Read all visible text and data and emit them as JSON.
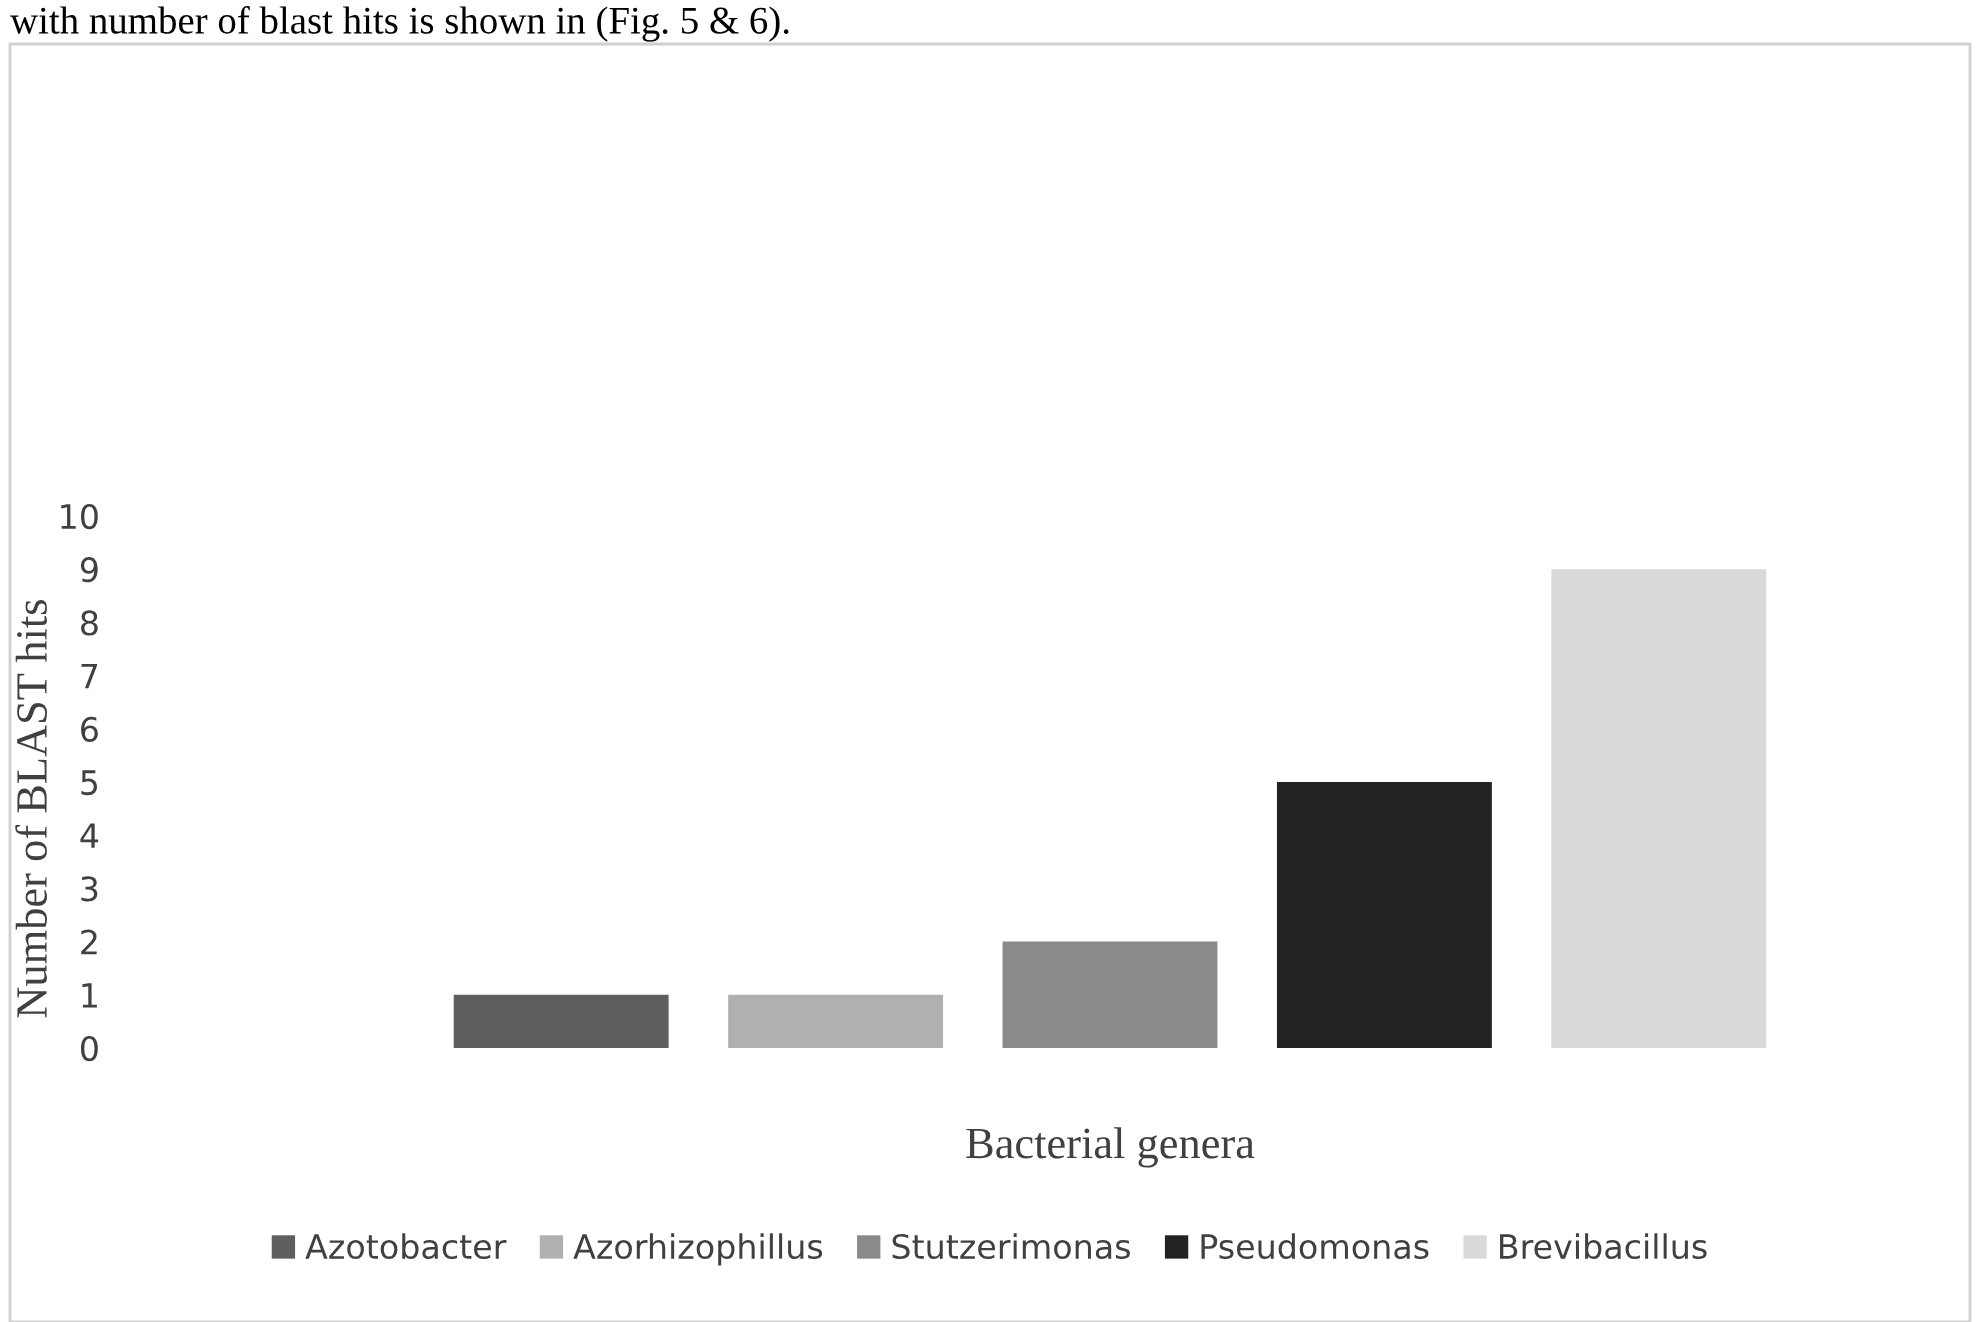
{
  "chart_data": {
    "type": "bar",
    "ylabel": "Number of BLAST hits",
    "xlabel": "Bacterial genera",
    "categories": [
      null
    ],
    "series": [
      {
        "name": "Azotobacter",
        "color": "#5f5f5f",
        "values": [
          1
        ]
      },
      {
        "name": "Azorhizophillus",
        "color": "#b0b0b0",
        "values": [
          1
        ]
      },
      {
        "name": "Stutzerimonas",
        "color": "#8a8a8a",
        "values": [
          2
        ]
      },
      {
        "name": "Pseudomonas",
        "color": "#222222",
        "values": [
          5
        ]
      },
      {
        "name": "Brevibacillus",
        "color": "#d9d9d9",
        "values": [
          9
        ]
      }
    ],
    "ylim": [
      0,
      10
    ],
    "yticks": [
      0,
      1,
      2,
      3,
      4,
      5,
      6,
      7,
      8,
      9,
      10
    ],
    "grid": false,
    "legend": "bottom",
    "annotations": [
      "with number of blast hits is shown in (Fig. 5 & 6)."
    ]
  }
}
